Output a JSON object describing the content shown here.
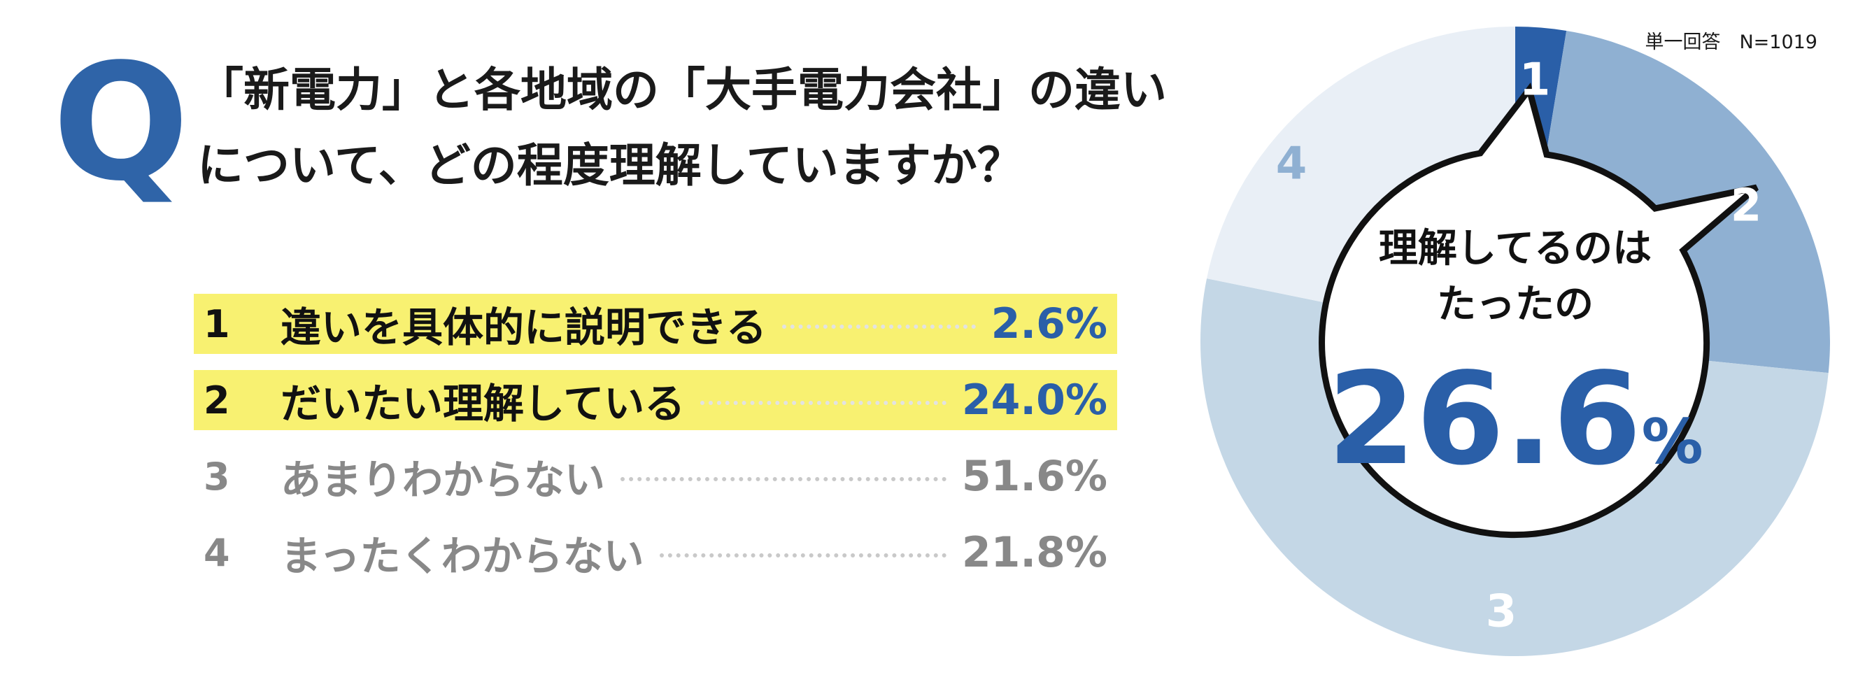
{
  "meta": "単一回答　N=1019",
  "question": {
    "mark": "Q",
    "line1": "「新電力」と各地域の「大手電力会社」の違い",
    "line2": "について、どの程度理解していますか？"
  },
  "answers": [
    {
      "num": "1",
      "label": "違いを具体的に説明できる",
      "pct": "2.6%",
      "highlight": true,
      "pct_color": "#2a5fa8"
    },
    {
      "num": "2",
      "label": "だいたい理解している",
      "pct": "24.0%",
      "highlight": true,
      "pct_color": "#2a5fa8"
    },
    {
      "num": "3",
      "label": "あまりわからない",
      "pct": "51.6%",
      "highlight": false,
      "pct_color": "#888888"
    },
    {
      "num": "4",
      "label": "まったくわからない",
      "pct": "21.8%",
      "highlight": false,
      "pct_color": "#888888"
    }
  ],
  "center": {
    "line1": "理解してるのは",
    "line2": "たったの",
    "value": "26.6",
    "unit": "%"
  },
  "chart_data": {
    "type": "pie",
    "donut": true,
    "categories": [
      "1",
      "2",
      "3",
      "4"
    ],
    "values": [
      2.6,
      24.0,
      51.6,
      21.8
    ],
    "colors": [
      "#2a5fa8",
      "#8fb0d2",
      "#c4d7e6",
      "#e9eff6"
    ],
    "label_colors": [
      "#ffffff",
      "#ffffff",
      "#ffffff",
      "#8fb0d2"
    ],
    "start_angle_deg": 0,
    "direction": "clockwise"
  }
}
